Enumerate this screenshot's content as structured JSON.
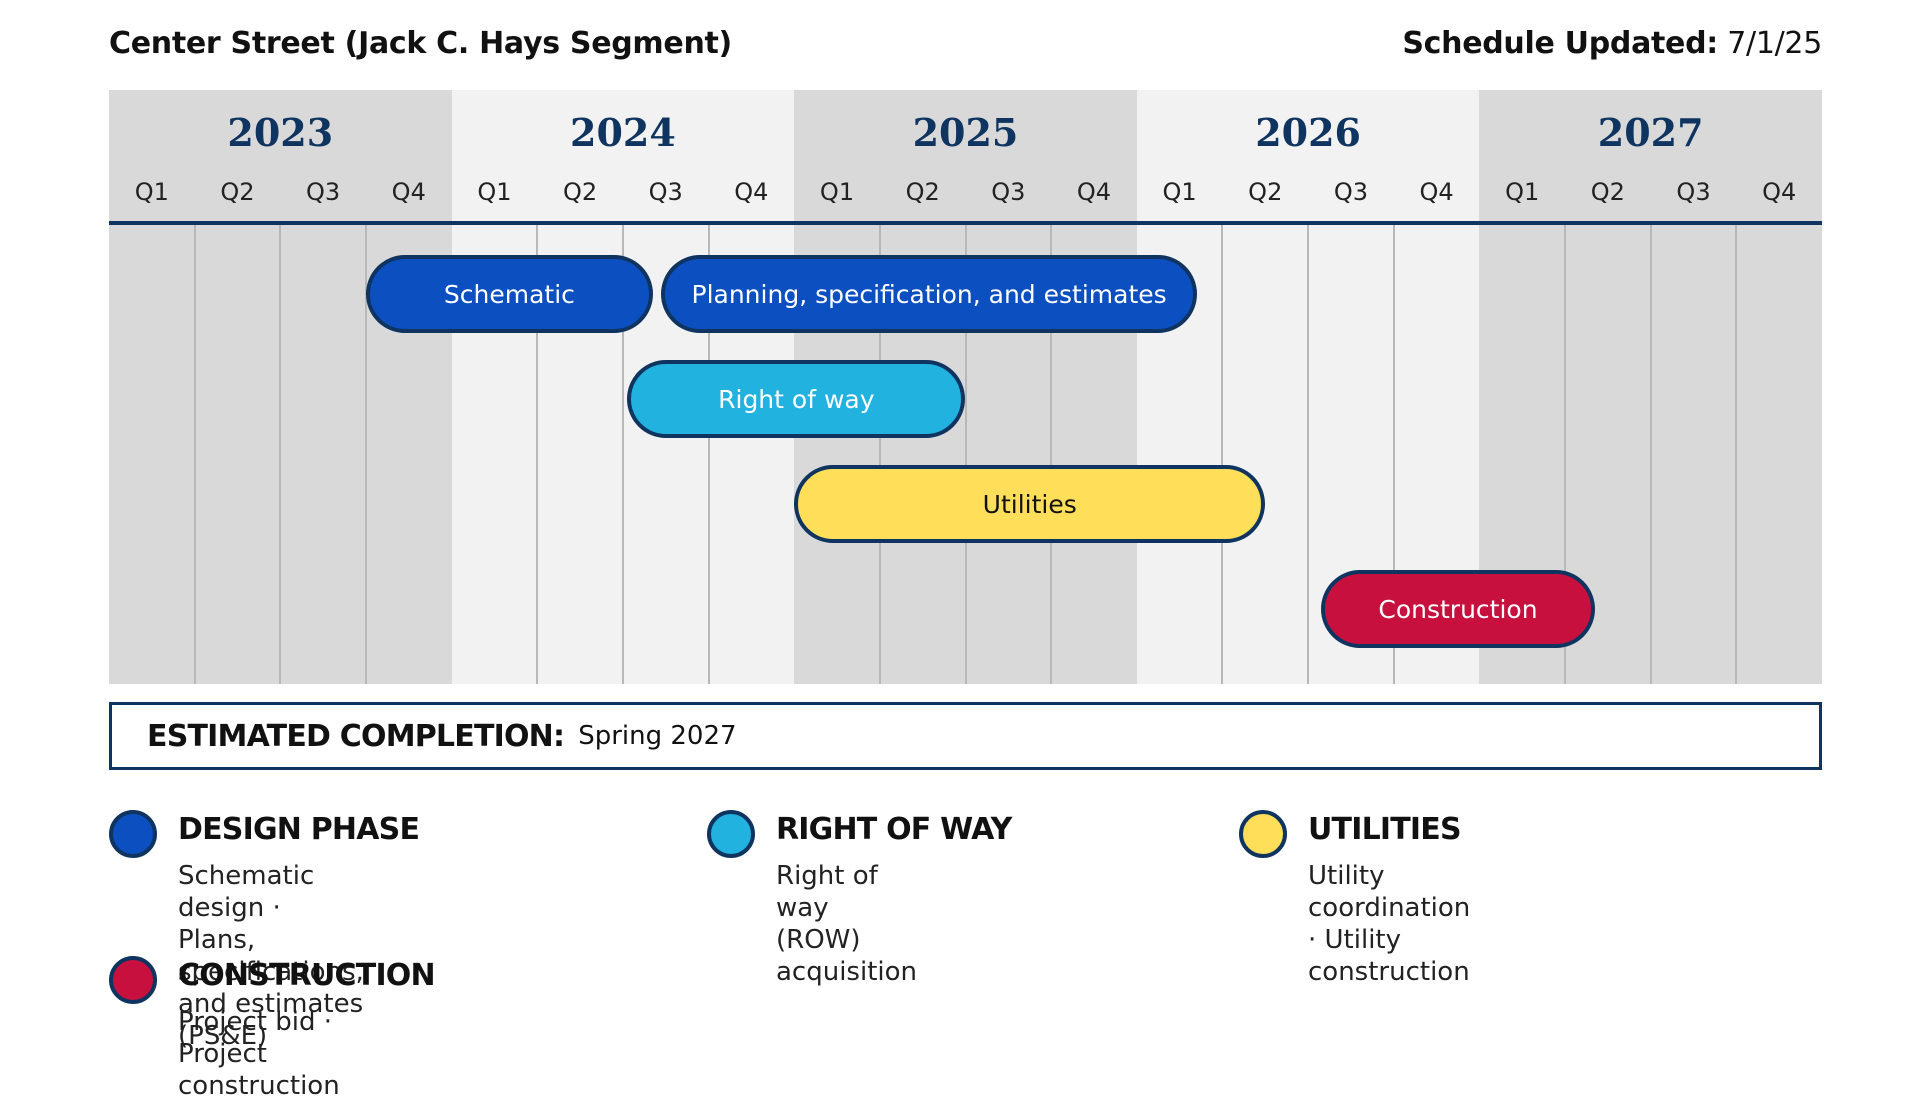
{
  "header": {
    "title": "Center Street (Jack C. Hays Segment)",
    "updated_label": "Schedule Updated:",
    "updated_value": "7/1/25"
  },
  "timeline": {
    "years": [
      "2023",
      "2024",
      "2025",
      "2026",
      "2027"
    ],
    "quarters": [
      "Q1",
      "Q2",
      "Q3",
      "Q4"
    ],
    "year_colors": [
      "#d9d9d9",
      "#f2f2f2",
      "#d9d9d9",
      "#f2f2f2",
      "#d9d9d9"
    ],
    "bars": [
      {
        "name": "schematic",
        "label": "Schematic",
        "start": 3.0,
        "end": 6.35,
        "row": 0,
        "fill": "#0b4fc0",
        "text_color": "#ffffff"
      },
      {
        "name": "pse",
        "label": "Planning, specification, and estimates",
        "start": 6.45,
        "end": 12.7,
        "row": 0,
        "fill": "#0b4fc0",
        "text_color": "#ffffff"
      },
      {
        "name": "right-of-way",
        "label": "Right of way",
        "start": 6.05,
        "end": 10.0,
        "row": 1,
        "fill": "#22b2e0",
        "text_color": "#ffffff"
      },
      {
        "name": "utilities",
        "label": "Utilities",
        "start": 8.0,
        "end": 13.5,
        "row": 2,
        "fill": "#ffde59",
        "text_color": "#111111"
      },
      {
        "name": "construction",
        "label": "Construction",
        "start": 14.15,
        "end": 17.35,
        "row": 3,
        "fill": "#c8103e",
        "text_color": "#ffffff"
      }
    ]
  },
  "completion": {
    "label": "ESTIMATED COMPLETION:",
    "value": "Spring 2027"
  },
  "legend": [
    {
      "title": "DESIGN PHASE",
      "desc_line1": "Schematic design   ·   Plans,",
      "desc_line2": "specifications,  and estimates (PS&E)",
      "color": "#0b4fc0"
    },
    {
      "title": "RIGHT OF WAY",
      "desc_line1": "Right of way (ROW) acquisition",
      "desc_line2": "",
      "color": "#22b2e0"
    },
    {
      "title": "UTILITIES",
      "desc_line1": "Utility coordination · Utility construction",
      "desc_line2": "",
      "color": "#ffde59"
    },
    {
      "title": "CONSTRUCTION",
      "desc_line1": "Project bid   ·   Project construction",
      "desc_line2": "",
      "color": "#c8103e"
    }
  ]
}
